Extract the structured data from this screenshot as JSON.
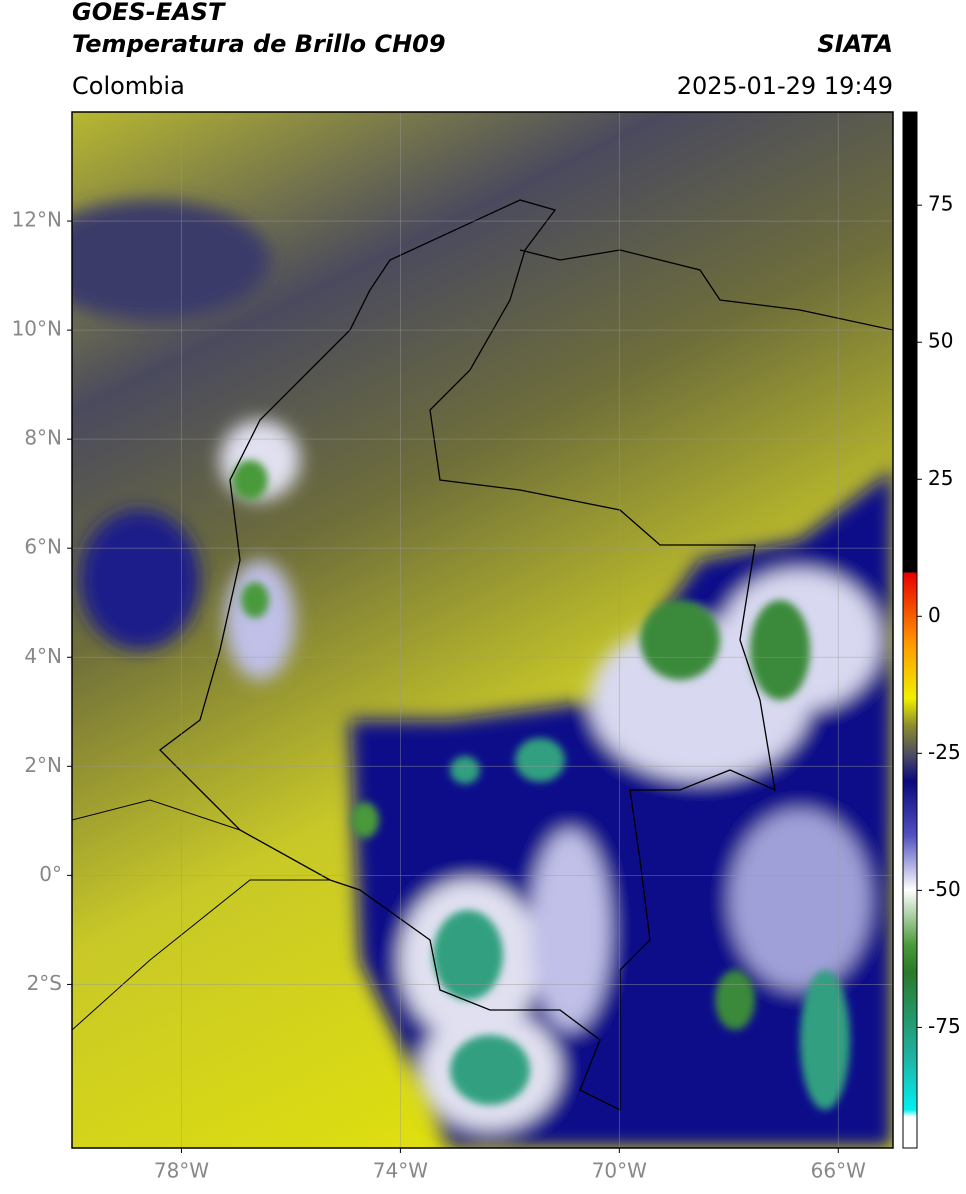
{
  "header": {
    "title": "GOES-EAST",
    "subtitle": "Temperatura de Brillo CH09",
    "region": "Colombia",
    "source": "SIATA",
    "datetime": "2025-01-29 19:49"
  },
  "map": {
    "xlim": [
      -80,
      -65
    ],
    "ylim": [
      -5,
      14
    ],
    "yticks": [
      {
        "value": 12,
        "label": "12°N"
      },
      {
        "value": 10,
        "label": "10°N"
      },
      {
        "value": 8,
        "label": "8°N"
      },
      {
        "value": 6,
        "label": "6°N"
      },
      {
        "value": 4,
        "label": "4°N"
      },
      {
        "value": 2,
        "label": "2°N"
      },
      {
        "value": 0,
        "label": "0°"
      },
      {
        "value": -2,
        "label": "2°S"
      }
    ],
    "xticks": [
      {
        "value": -78,
        "label": "78°W"
      },
      {
        "value": -74,
        "label": "74°W"
      },
      {
        "value": -70,
        "label": "70°W"
      },
      {
        "value": -66,
        "label": "66°W"
      }
    ]
  },
  "colorbar": {
    "lim": [
      -97,
      92
    ],
    "ticks": [
      75,
      50,
      25,
      0,
      -25,
      -50,
      -75
    ]
  }
}
